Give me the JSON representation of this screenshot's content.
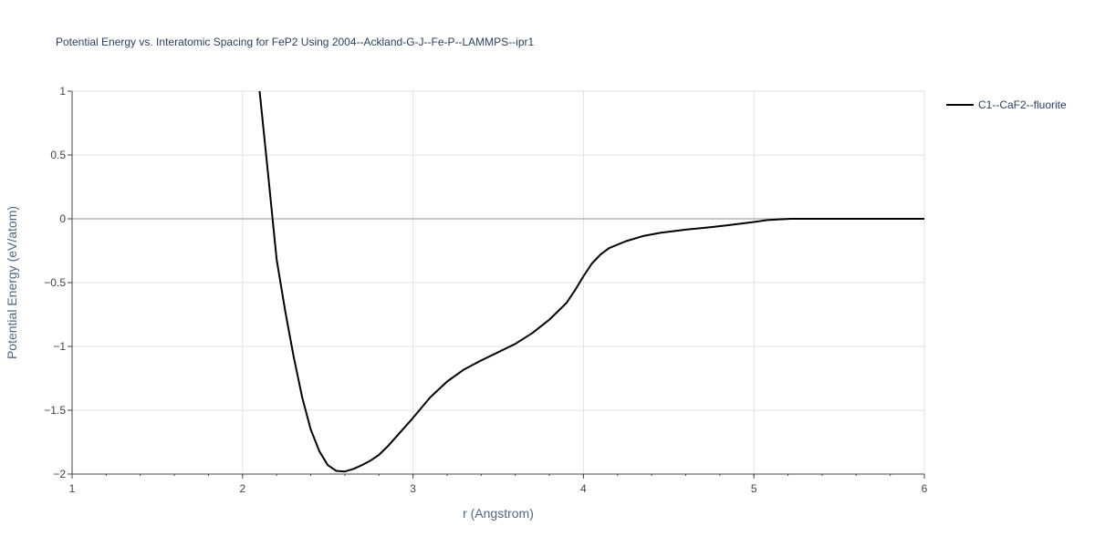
{
  "chart_data": {
    "type": "line",
    "title": "Potential Energy vs. Interatomic Spacing for FeP2 Using 2004--Ackland-G-J--Fe-P--LAMMPS--ipr1",
    "xlabel": "r (Angstrom)",
    "ylabel": "Potential Energy (eV/atom)",
    "xlim": [
      1,
      6
    ],
    "ylim": [
      -2,
      1
    ],
    "x_ticks": [
      1,
      2,
      3,
      4,
      5,
      6
    ],
    "x_tick_labels": [
      "1",
      "2",
      "3",
      "4",
      "5",
      "6"
    ],
    "y_ticks": [
      -2,
      -1.5,
      -1,
      -0.5,
      0,
      0.5,
      1
    ],
    "y_tick_labels": [
      "−2",
      "−1.5",
      "−1",
      "−0.5",
      "0",
      "0.5",
      "1"
    ],
    "grid": true,
    "legend_position": "top-right",
    "series": [
      {
        "name": "C1--CaF2--fluorite",
        "color": "#000000",
        "x": [
          2.1,
          2.15,
          2.2,
          2.25,
          2.3,
          2.35,
          2.4,
          2.45,
          2.5,
          2.55,
          2.6,
          2.65,
          2.7,
          2.75,
          2.8,
          2.85,
          2.9,
          2.95,
          3.0,
          3.1,
          3.2,
          3.3,
          3.4,
          3.5,
          3.6,
          3.7,
          3.8,
          3.85,
          3.9,
          3.95,
          4.0,
          4.05,
          4.1,
          4.15,
          4.25,
          4.35,
          4.45,
          4.6,
          4.75,
          4.85,
          5.0,
          5.08,
          5.15,
          5.22,
          5.4,
          5.6,
          5.8,
          6.0
        ],
        "y": [
          1.0,
          0.35,
          -0.32,
          -0.72,
          -1.08,
          -1.4,
          -1.65,
          -1.82,
          -1.93,
          -1.975,
          -1.98,
          -1.96,
          -1.93,
          -1.895,
          -1.85,
          -1.785,
          -1.71,
          -1.635,
          -1.56,
          -1.4,
          -1.275,
          -1.18,
          -1.11,
          -1.045,
          -0.98,
          -0.895,
          -0.79,
          -0.725,
          -0.66,
          -0.56,
          -0.45,
          -0.35,
          -0.28,
          -0.23,
          -0.175,
          -0.135,
          -0.11,
          -0.085,
          -0.065,
          -0.05,
          -0.025,
          -0.01,
          -0.004,
          0.0,
          0.0,
          0.0,
          0.0,
          0.0
        ]
      }
    ]
  }
}
